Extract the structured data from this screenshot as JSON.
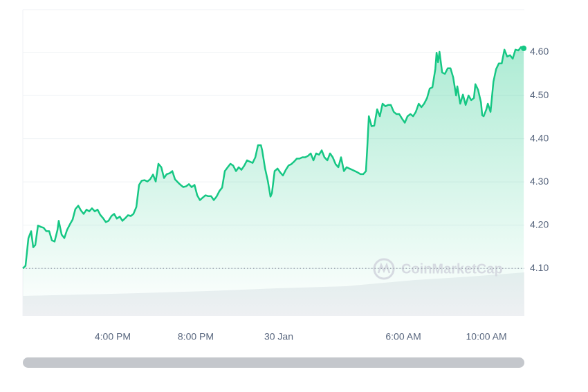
{
  "chart_data": {
    "type": "line",
    "x": [
      11.67,
      11.8,
      11.94,
      12.07,
      12.17,
      12.27,
      12.4,
      12.54,
      12.67,
      12.8,
      12.94,
      13.07,
      13.2,
      13.34,
      13.4,
      13.54,
      13.67,
      13.8,
      13.94,
      14.07,
      14.2,
      14.34,
      14.47,
      14.6,
      14.74,
      14.87,
      15.0,
      15.14,
      15.27,
      15.4,
      15.54,
      15.67,
      15.8,
      15.94,
      16.07,
      16.2,
      16.34,
      16.47,
      16.6,
      16.74,
      16.87,
      17.0,
      17.14,
      17.27,
      17.4,
      17.54,
      17.67,
      17.8,
      17.94,
      18.07,
      18.2,
      18.34,
      18.47,
      18.6,
      18.74,
      18.87,
      19.0,
      19.14,
      19.27,
      19.4,
      19.54,
      19.67,
      19.8,
      19.94,
      20.07,
      20.2,
      20.34,
      20.47,
      20.6,
      20.74,
      20.87,
      21.0,
      21.14,
      21.27,
      21.4,
      21.54,
      21.67,
      21.8,
      21.94,
      22.07,
      22.2,
      22.34,
      22.47,
      22.6,
      22.74,
      22.87,
      23.0,
      23.14,
      23.2,
      23.34,
      23.47,
      23.6,
      23.67,
      23.8,
      23.94,
      24.07,
      24.2,
      24.34,
      24.47,
      24.6,
      24.74,
      24.87,
      25.0,
      25.14,
      25.27,
      25.4,
      25.54,
      25.67,
      25.8,
      25.94,
      26.07,
      26.2,
      26.34,
      26.47,
      26.6,
      26.74,
      26.87,
      27.0,
      27.14,
      27.27,
      27.4,
      27.54,
      27.67,
      27.8,
      27.94,
      28.07,
      28.2,
      28.27,
      28.34,
      28.47,
      28.6,
      28.74,
      28.87,
      29.0,
      29.14,
      29.27,
      29.4,
      29.54,
      29.67,
      29.8,
      29.94,
      30.07,
      30.2,
      30.34,
      30.47,
      30.6,
      30.74,
      30.87,
      31.0,
      31.14,
      31.27,
      31.4,
      31.54,
      31.6,
      31.67,
      31.74,
      31.87,
      32.0,
      32.14,
      32.27,
      32.4,
      32.54,
      32.6,
      32.74,
      32.87,
      33.0,
      33.14,
      33.27,
      33.4,
      33.47,
      33.6,
      33.74,
      33.8,
      33.87,
      34.0,
      34.07,
      34.2,
      34.34,
      34.47,
      34.6,
      34.74,
      34.87,
      35.0,
      35.14,
      35.27,
      35.4,
      35.54,
      35.67,
      35.8
    ],
    "series": [
      {
        "color": "#16c784",
        "values": [
          4.1,
          4.106,
          4.17,
          4.186,
          4.149,
          4.154,
          4.199,
          4.196,
          4.194,
          4.186,
          4.186,
          4.165,
          4.162,
          4.189,
          4.21,
          4.178,
          4.17,
          4.189,
          4.202,
          4.213,
          4.237,
          4.245,
          4.234,
          4.226,
          4.236,
          4.232,
          4.239,
          4.232,
          4.236,
          4.224,
          4.216,
          4.207,
          4.21,
          4.221,
          4.226,
          4.215,
          4.22,
          4.21,
          4.216,
          4.223,
          4.221,
          4.226,
          4.242,
          4.293,
          4.303,
          4.304,
          4.301,
          4.306,
          4.317,
          4.301,
          4.342,
          4.334,
          4.309,
          4.318,
          4.32,
          4.325,
          4.306,
          4.299,
          4.293,
          4.288,
          4.29,
          4.295,
          4.288,
          4.293,
          4.269,
          4.258,
          4.264,
          4.269,
          4.267,
          4.267,
          4.258,
          4.266,
          4.279,
          4.287,
          4.325,
          4.334,
          4.342,
          4.338,
          4.325,
          4.334,
          4.328,
          4.338,
          4.35,
          4.347,
          4.344,
          4.357,
          4.385,
          4.385,
          4.373,
          4.331,
          4.303,
          4.266,
          4.274,
          4.325,
          4.331,
          4.322,
          4.315,
          4.328,
          4.338,
          4.341,
          4.347,
          4.354,
          4.354,
          4.357,
          4.357,
          4.36,
          4.366,
          4.35,
          4.366,
          4.363,
          4.373,
          4.357,
          4.35,
          4.366,
          4.357,
          4.341,
          4.334,
          4.357,
          4.325,
          4.334,
          4.331,
          4.328,
          4.325,
          4.322,
          4.318,
          4.318,
          4.325,
          4.385,
          4.452,
          4.429,
          4.43,
          4.468,
          4.452,
          4.481,
          4.475,
          4.478,
          4.478,
          4.462,
          4.457,
          4.457,
          4.446,
          4.437,
          4.452,
          4.457,
          4.452,
          4.462,
          4.481,
          4.473,
          4.481,
          4.494,
          4.516,
          4.519,
          4.561,
          4.599,
          4.577,
          4.601,
          4.553,
          4.55,
          4.563,
          4.563,
          4.542,
          4.5,
          4.521,
          4.481,
          4.502,
          4.478,
          4.5,
          4.489,
          4.494,
          4.526,
          4.513,
          4.484,
          4.454,
          4.452,
          4.468,
          4.481,
          4.462,
          4.532,
          4.561,
          4.574,
          4.574,
          4.606,
          4.59,
          4.593,
          4.585,
          4.606,
          4.604,
          4.612,
          4.609
        ]
      }
    ],
    "xlim": [
      11.67,
      35.83
    ],
    "xticks": [
      {
        "value": 16,
        "label": "4:00 PM"
      },
      {
        "value": 20,
        "label": "8:00 PM"
      },
      {
        "value": 24,
        "label": "30 Jan"
      },
      {
        "value": 30,
        "label": "6:00 AM"
      },
      {
        "value": 34,
        "label": "10:00 AM"
      }
    ],
    "ylim": [
      3.99,
      4.7
    ],
    "yticks": [
      {
        "value": 4.1,
        "label": "4.10"
      },
      {
        "value": 4.2,
        "label": "4.20"
      },
      {
        "value": 4.3,
        "label": "4.30"
      },
      {
        "value": 4.4,
        "label": "4.40"
      },
      {
        "value": 4.5,
        "label": "4.50"
      },
      {
        "value": 4.6,
        "label": "4.60"
      }
    ],
    "baseline": 4.1,
    "grid": true,
    "watermark": "CoinMarketCap"
  }
}
